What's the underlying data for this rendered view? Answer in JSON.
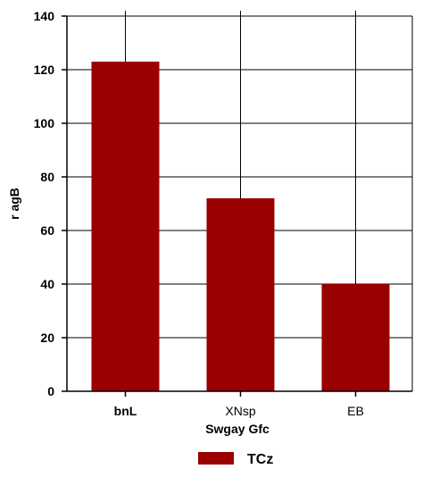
{
  "chart_data": {
    "type": "bar",
    "categories": [
      "bnL",
      "XNsp",
      "EB"
    ],
    "series": [
      {
        "name": "TCz",
        "values": [
          123,
          72,
          40
        ],
        "color": "#990000"
      }
    ],
    "xlabel": "Swgay Gfc",
    "ylabel": "r agB",
    "ylim": [
      0,
      140
    ],
    "yticks": [
      0,
      20,
      40,
      60,
      80,
      100,
      120,
      140
    ],
    "grid": true,
    "legend": "bottom-center"
  }
}
